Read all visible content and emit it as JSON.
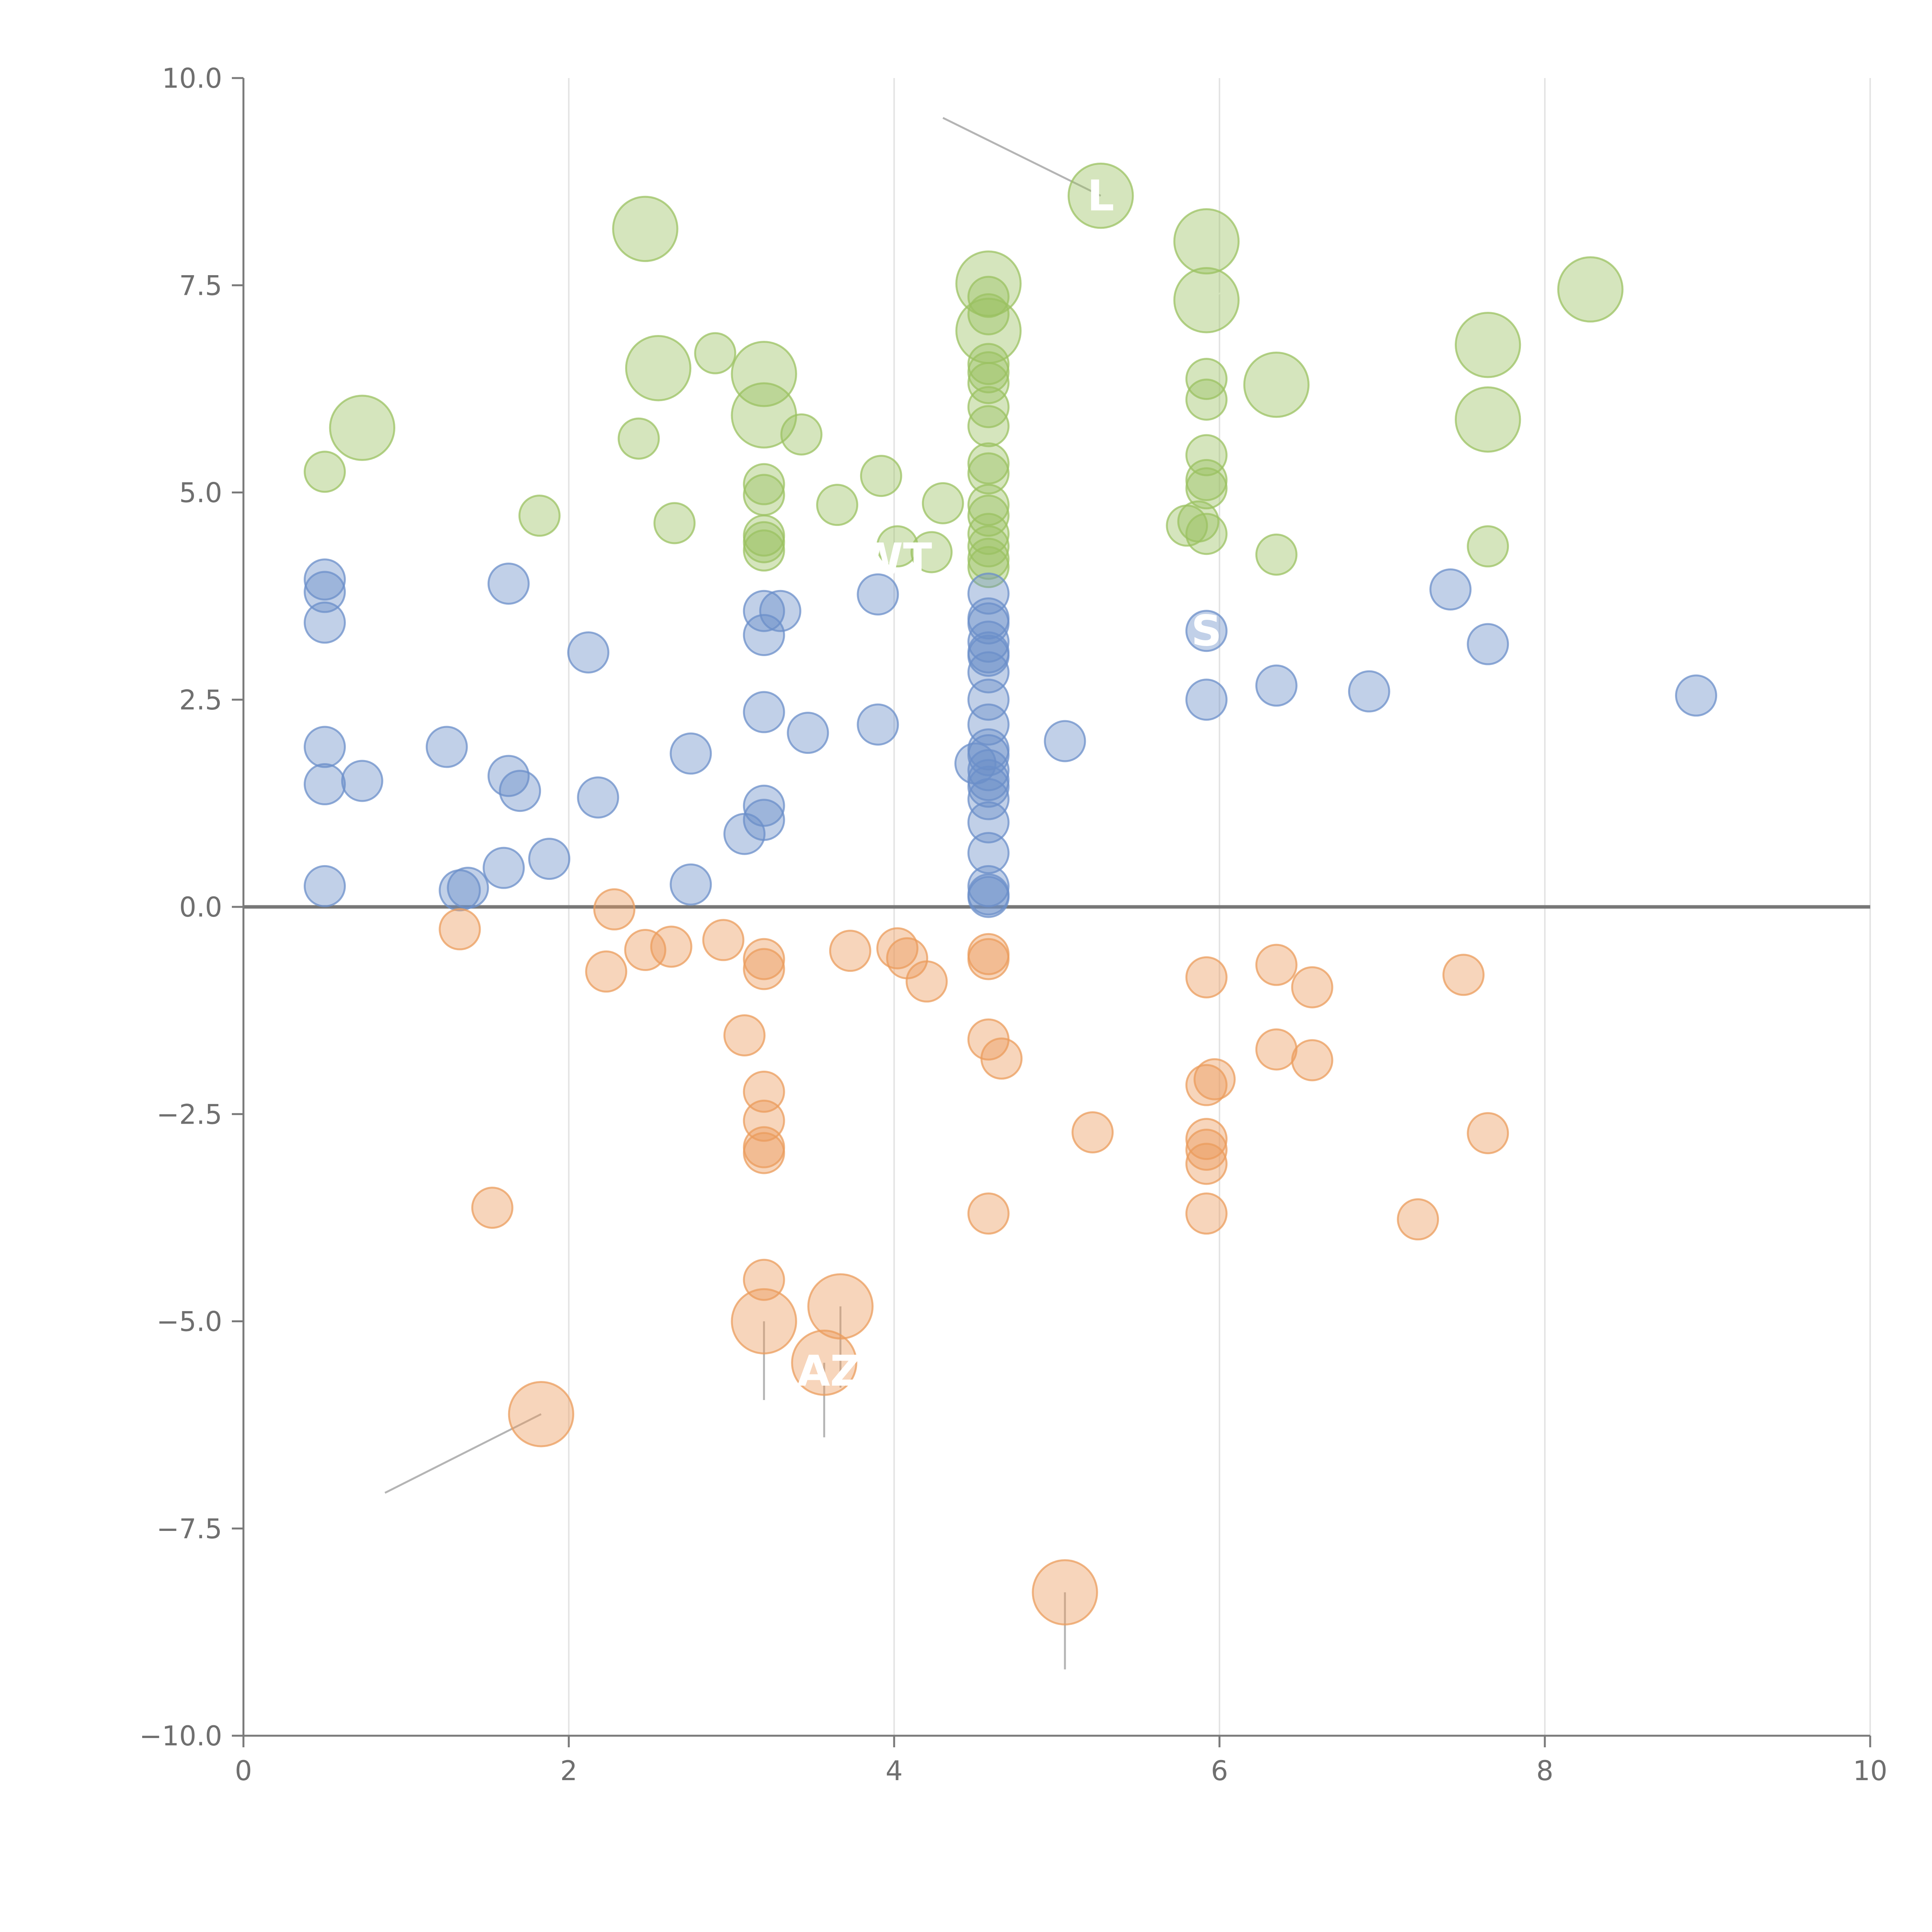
{
  "chart_data": {
    "type": "scatter",
    "title": "",
    "xlabel": "",
    "ylabel": "",
    "xlim": [
      0,
      10
    ],
    "ylim": [
      -10,
      10
    ],
    "x_ticks": [
      0,
      2,
      4,
      6,
      8,
      10
    ],
    "x_tick_labels": [
      "0",
      "2",
      "4",
      "6",
      "8",
      "10"
    ],
    "y_ticks": [
      10,
      7.5,
      5,
      2.5,
      0,
      -2.5,
      -5,
      -7.5,
      -10
    ],
    "y_tick_labels": [
      "10.0",
      "7.5",
      "5.0",
      "2.5",
      "0.0",
      "−2.5",
      "−5.0",
      "−7.5",
      "−10.0"
    ],
    "grid": "vertical",
    "colors": {
      "green": "#9bc162",
      "blue": "#6b8fc9",
      "orange": "#eb9c5c"
    },
    "series": [
      {
        "name": "green",
        "color": "#9bc162",
        "points": [
          [
            2.47,
            8.18,
            1.6
          ],
          [
            5.27,
            8.58,
            1.6
          ],
          [
            5.92,
            8.03,
            1.6
          ],
          [
            4.58,
            7.52,
            1.6
          ],
          [
            5.92,
            7.32,
            1.6
          ],
          [
            8.28,
            7.45,
            1.6
          ],
          [
            4.58,
            6.95,
            1.6
          ],
          [
            7.65,
            6.78,
            1.6
          ],
          [
            2.55,
            6.5,
            1.6
          ],
          [
            3.2,
            6.43,
            1.6
          ],
          [
            6.35,
            6.3,
            1.6
          ],
          [
            3.2,
            5.93,
            1.6
          ],
          [
            7.65,
            5.88,
            1.6
          ],
          [
            0.73,
            5.78,
            1.6
          ],
          [
            4.58,
            7.36,
            1
          ],
          [
            4.58,
            7.15,
            1
          ],
          [
            2.9,
            6.68,
            1
          ],
          [
            4.58,
            6.55,
            1
          ],
          [
            4.58,
            6.45,
            1
          ],
          [
            4.58,
            6.32,
            1
          ],
          [
            5.92,
            6.37,
            1
          ],
          [
            4.58,
            6.03,
            1
          ],
          [
            5.92,
            6.12,
            1
          ],
          [
            3.43,
            5.7,
            1
          ],
          [
            4.58,
            5.8,
            1
          ],
          [
            2.43,
            5.65,
            1
          ],
          [
            5.92,
            5.45,
            1
          ],
          [
            4.58,
            5.35,
            1
          ],
          [
            0.5,
            5.25,
            1
          ],
          [
            4.58,
            5.23,
            1
          ],
          [
            3.92,
            5.2,
            1
          ],
          [
            3.2,
            5.1,
            1
          ],
          [
            5.92,
            5.15,
            1
          ],
          [
            5.92,
            5.05,
            1
          ],
          [
            3.2,
            4.97,
            1
          ],
          [
            4.3,
            4.87,
            1
          ],
          [
            3.65,
            4.85,
            1
          ],
          [
            4.58,
            4.85,
            1
          ],
          [
            4.58,
            4.72,
            1
          ],
          [
            1.82,
            4.72,
            1
          ],
          [
            2.65,
            4.63,
            1
          ],
          [
            5.8,
            4.6,
            1
          ],
          [
            5.87,
            4.65,
            1
          ],
          [
            5.92,
            4.5,
            1
          ],
          [
            4.58,
            4.5,
            1
          ],
          [
            3.2,
            4.48,
            1
          ],
          [
            3.2,
            4.4,
            1
          ],
          [
            4.58,
            4.35,
            1
          ],
          [
            4.02,
            4.35,
            1
          ],
          [
            3.2,
            4.3,
            1
          ],
          [
            4.23,
            4.28,
            1
          ],
          [
            7.65,
            4.35,
            1
          ],
          [
            6.35,
            4.25,
            1
          ],
          [
            4.58,
            4.2,
            1
          ],
          [
            4.58,
            4.1,
            1
          ]
        ]
      },
      {
        "name": "blue",
        "color": "#6b8fc9",
        "points": [
          [
            0.5,
            3.95,
            1
          ],
          [
            0.5,
            3.8,
            1
          ],
          [
            0.5,
            3.43,
            1
          ],
          [
            1.63,
            3.9,
            1
          ],
          [
            3.9,
            3.77,
            1
          ],
          [
            4.58,
            3.78,
            1
          ],
          [
            7.42,
            3.83,
            1
          ],
          [
            3.2,
            3.57,
            1
          ],
          [
            3.3,
            3.57,
            1
          ],
          [
            4.58,
            3.48,
            1
          ],
          [
            4.58,
            3.42,
            1
          ],
          [
            5.92,
            3.33,
            1
          ],
          [
            3.2,
            3.28,
            1
          ],
          [
            7.65,
            3.17,
            1
          ],
          [
            4.58,
            3.2,
            1
          ],
          [
            4.58,
            3.07,
            1
          ],
          [
            4.58,
            3.03,
            1
          ],
          [
            2.12,
            3.07,
            1
          ],
          [
            4.58,
            2.83,
            1
          ],
          [
            6.35,
            2.67,
            1
          ],
          [
            6.92,
            2.6,
            1
          ],
          [
            8.93,
            2.55,
            1
          ],
          [
            4.58,
            2.5,
            1
          ],
          [
            5.92,
            2.5,
            1
          ],
          [
            3.2,
            2.35,
            1
          ],
          [
            3.9,
            2.2,
            1
          ],
          [
            4.58,
            2.2,
            1
          ],
          [
            3.47,
            2.1,
            1
          ],
          [
            5.05,
            2.0,
            1
          ],
          [
            0.5,
            1.93,
            1
          ],
          [
            1.25,
            1.93,
            1
          ],
          [
            4.58,
            1.9,
            1
          ],
          [
            2.75,
            1.85,
            1
          ],
          [
            4.58,
            1.83,
            1
          ],
          [
            4.5,
            1.73,
            1
          ],
          [
            4.58,
            1.65,
            1
          ],
          [
            1.63,
            1.58,
            1
          ],
          [
            0.5,
            1.48,
            1
          ],
          [
            0.73,
            1.52,
            1
          ],
          [
            4.58,
            1.53,
            1
          ],
          [
            1.7,
            1.4,
            1
          ],
          [
            4.58,
            1.45,
            1
          ],
          [
            2.18,
            1.32,
            1
          ],
          [
            4.58,
            1.3,
            1
          ],
          [
            3.2,
            1.22,
            1
          ],
          [
            3.2,
            1.05,
            1
          ],
          [
            4.58,
            1.02,
            1
          ],
          [
            3.08,
            0.88,
            1
          ],
          [
            4.58,
            0.65,
            1
          ],
          [
            1.88,
            0.58,
            1
          ],
          [
            1.6,
            0.47,
            1
          ],
          [
            0.5,
            0.25,
            1
          ],
          [
            2.75,
            0.27,
            1
          ],
          [
            1.33,
            0.2,
            1
          ],
          [
            1.38,
            0.23,
            1
          ],
          [
            4.58,
            0.25,
            1
          ],
          [
            4.58,
            0.15,
            1
          ],
          [
            4.58,
            0.12,
            1
          ]
        ]
      },
      {
        "name": "orange",
        "color": "#eb9c5c",
        "points": [
          [
            2.28,
            -0.03,
            1
          ],
          [
            1.33,
            -0.27,
            1
          ],
          [
            2.95,
            -0.4,
            1
          ],
          [
            4.02,
            -0.5,
            1
          ],
          [
            2.47,
            -0.52,
            1
          ],
          [
            2.63,
            -0.48,
            1
          ],
          [
            3.73,
            -0.53,
            1
          ],
          [
            4.58,
            -0.57,
            1
          ],
          [
            3.2,
            -0.63,
            1
          ],
          [
            4.08,
            -0.62,
            1
          ],
          [
            4.58,
            -0.63,
            1
          ],
          [
            6.35,
            -0.7,
            1
          ],
          [
            3.2,
            -0.75,
            1
          ],
          [
            2.23,
            -0.78,
            1
          ],
          [
            7.5,
            -0.82,
            1
          ],
          [
            5.92,
            -0.85,
            1
          ],
          [
            4.2,
            -0.9,
            1
          ],
          [
            6.57,
            -0.97,
            1
          ],
          [
            3.08,
            -1.55,
            1
          ],
          [
            4.58,
            -1.6,
            1
          ],
          [
            6.35,
            -1.72,
            1
          ],
          [
            4.66,
            -1.83,
            1
          ],
          [
            6.57,
            -1.85,
            1
          ],
          [
            5.97,
            -2.08,
            1
          ],
          [
            5.92,
            -2.15,
            1
          ],
          [
            3.2,
            -2.23,
            1
          ],
          [
            3.2,
            -2.58,
            1
          ],
          [
            5.22,
            -2.72,
            1
          ],
          [
            7.65,
            -2.73,
            1
          ],
          [
            5.92,
            -2.8,
            1
          ],
          [
            3.2,
            -2.9,
            1
          ],
          [
            5.92,
            -2.93,
            1
          ],
          [
            3.2,
            -2.97,
            1
          ],
          [
            5.92,
            -3.1,
            1
          ],
          [
            1.53,
            -3.63,
            1
          ],
          [
            4.58,
            -3.7,
            1
          ],
          [
            5.92,
            -3.7,
            1
          ],
          [
            7.22,
            -3.77,
            1
          ],
          [
            3.2,
            -4.5,
            1
          ],
          [
            3.67,
            -4.82,
            1.6
          ],
          [
            3.2,
            -5.0,
            1.6
          ],
          [
            3.57,
            -5.5,
            1.6
          ],
          [
            1.83,
            -6.12,
            1.6
          ],
          [
            5.05,
            -8.27,
            1.6
          ]
        ]
      }
    ],
    "annotations": [
      {
        "text": "L",
        "x": 5.27,
        "y": 8.58
      },
      {
        "text": "S",
        "x": 5.92,
        "y": 3.33
      },
      {
        "text": "WT",
        "x": 4.0,
        "y": 4.2
      },
      {
        "text": "AZ",
        "x": 3.6,
        "y": -5.6
      }
    ]
  }
}
